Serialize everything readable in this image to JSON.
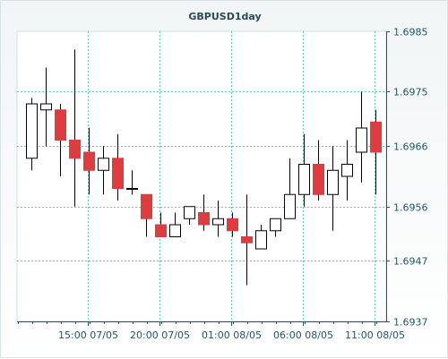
{
  "chart_data": {
    "type": "candlestick",
    "title": "GBPUSD1day",
    "ylim": [
      1.6937,
      1.6985
    ],
    "y_ticks": [
      "1.6985",
      "1.6975",
      "1.6966",
      "1.6956",
      "1.6947",
      "1.6937"
    ],
    "x_ticks": [
      "15:00 07/05",
      "20:00 07/05",
      "01:00 08/05",
      "06:00 08/05",
      "11:00 08/05"
    ],
    "colors": {
      "up": "#ffffff",
      "down": "#e03c40",
      "wick": "#000000",
      "grid": "#5fc7cc",
      "axis": "#1f5666"
    },
    "candles": [
      {
        "open": 1.6964,
        "high": 1.6974,
        "low": 1.6962,
        "close": 1.6973
      },
      {
        "open": 1.6972,
        "high": 1.6979,
        "low": 1.6966,
        "close": 1.6973
      },
      {
        "open": 1.6972,
        "high": 1.6973,
        "low": 1.6961,
        "close": 1.6967
      },
      {
        "open": 1.6967,
        "high": 1.6982,
        "low": 1.6956,
        "close": 1.6964
      },
      {
        "open": 1.6965,
        "high": 1.6969,
        "low": 1.6958,
        "close": 1.6962
      },
      {
        "open": 1.6962,
        "high": 1.6966,
        "low": 1.6958,
        "close": 1.6964
      },
      {
        "open": 1.6964,
        "high": 1.6968,
        "low": 1.6957,
        "close": 1.6959
      },
      {
        "open": 1.6959,
        "high": 1.6962,
        "low": 1.6958,
        "close": 1.6959
      },
      {
        "open": 1.6958,
        "high": 1.6958,
        "low": 1.6951,
        "close": 1.6954
      },
      {
        "open": 1.6953,
        "high": 1.6955,
        "low": 1.6951,
        "close": 1.6951
      },
      {
        "open": 1.6951,
        "high": 1.6955,
        "low": 1.6951,
        "close": 1.6953
      },
      {
        "open": 1.6954,
        "high": 1.6956,
        "low": 1.6953,
        "close": 1.6956
      },
      {
        "open": 1.6955,
        "high": 1.6958,
        "low": 1.6952,
        "close": 1.6953
      },
      {
        "open": 1.6953,
        "high": 1.6957,
        "low": 1.6951,
        "close": 1.6954
      },
      {
        "open": 1.6954,
        "high": 1.6955,
        "low": 1.6951,
        "close": 1.6952
      },
      {
        "open": 1.6951,
        "high": 1.6958,
        "low": 1.6943,
        "close": 1.695
      },
      {
        "open": 1.6949,
        "high": 1.6953,
        "low": 1.6949,
        "close": 1.6952
      },
      {
        "open": 1.6952,
        "high": 1.6954,
        "low": 1.6951,
        "close": 1.6954
      },
      {
        "open": 1.6954,
        "high": 1.6964,
        "low": 1.6954,
        "close": 1.6958
      },
      {
        "open": 1.6958,
        "high": 1.6968,
        "low": 1.6956,
        "close": 1.6963
      },
      {
        "open": 1.6963,
        "high": 1.6967,
        "low": 1.6957,
        "close": 1.6958
      },
      {
        "open": 1.6958,
        "high": 1.6966,
        "low": 1.6952,
        "close": 1.6962
      },
      {
        "open": 1.6961,
        "high": 1.6967,
        "low": 1.6957,
        "close": 1.6963
      },
      {
        "open": 1.6965,
        "high": 1.6975,
        "low": 1.696,
        "close": 1.6969
      },
      {
        "open": 1.697,
        "high": 1.6972,
        "low": 1.6958,
        "close": 1.6965
      }
    ]
  }
}
